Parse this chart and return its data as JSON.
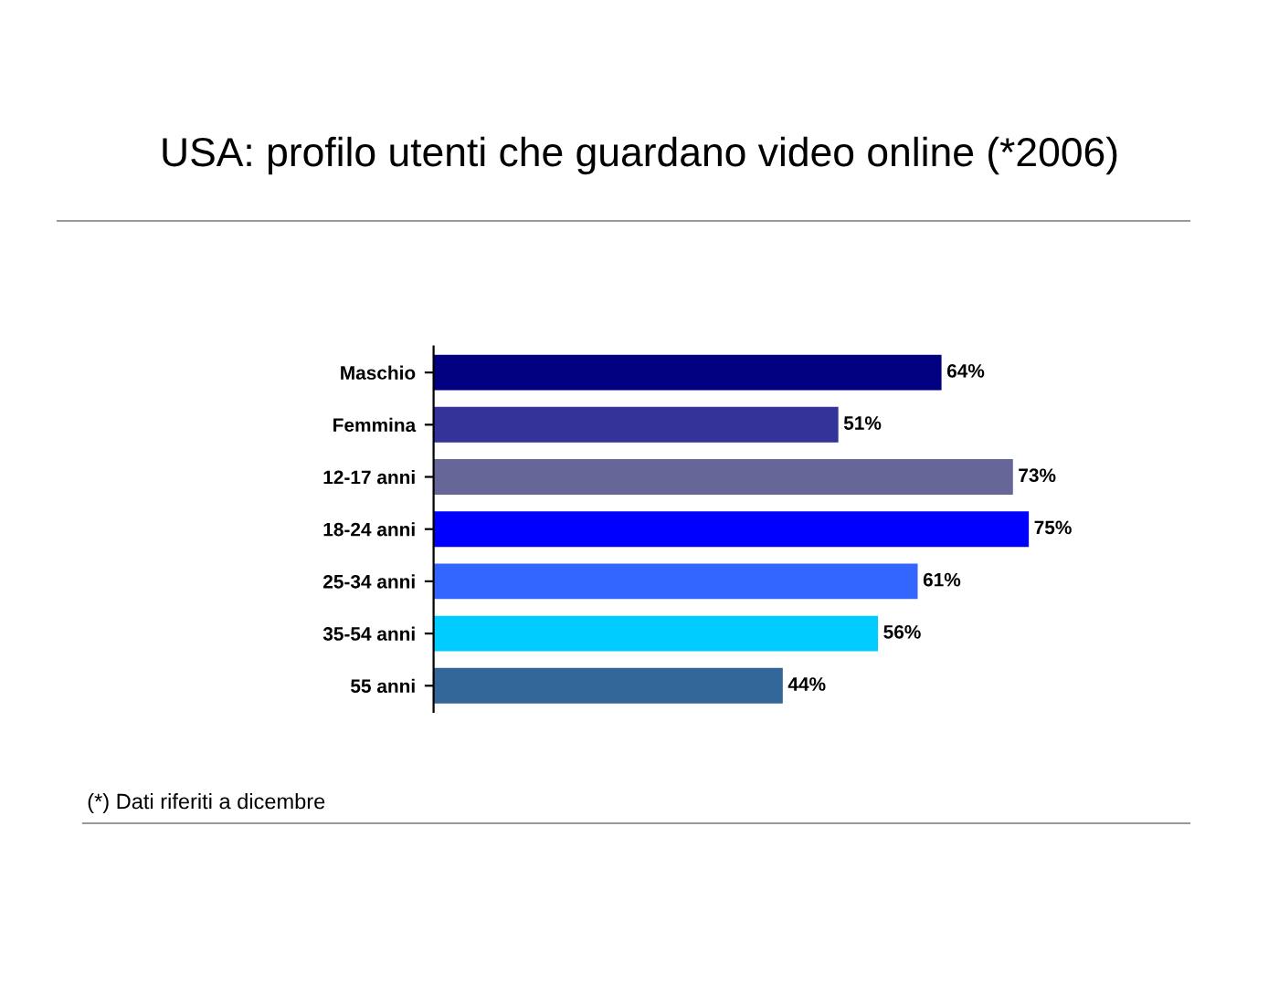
{
  "chart_data": {
    "type": "bar",
    "orientation": "horizontal",
    "title": "USA: profilo utenti che guardano video online (*2006)",
    "categories": [
      "Maschio",
      "Femmina",
      "12-17 anni",
      "18-24 anni",
      "25-34 anni",
      "35-54 anni",
      "55 anni"
    ],
    "values": [
      64,
      51,
      73,
      75,
      61,
      56,
      44
    ],
    "value_labels": [
      "64%",
      "51%",
      "73%",
      "75%",
      "61%",
      "56%",
      "44%"
    ],
    "colors": [
      "#000080",
      "#333399",
      "#666699",
      "#0000ff",
      "#3366ff",
      "#00ccff",
      "#336699"
    ],
    "annotations": [
      "(*) Dati riferiti a dicembre"
    ],
    "grid": false,
    "legend": false
  }
}
